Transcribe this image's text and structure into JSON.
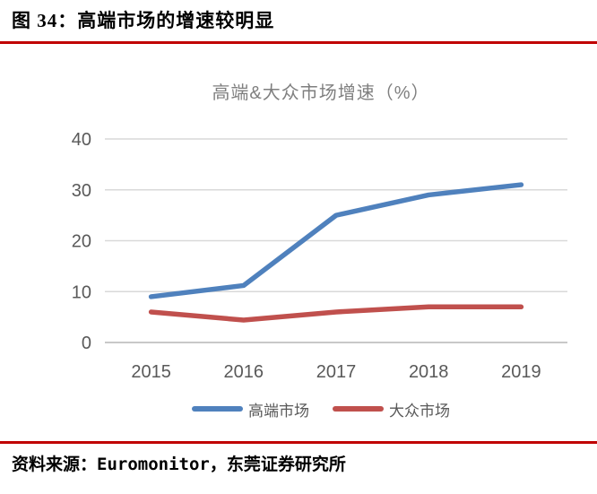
{
  "figure": {
    "title": "图 34：高端市场的增速较明显",
    "source": "资料来源：Euromonitor，东莞证券研究所"
  },
  "colors": {
    "rule_red": "#c00000",
    "gridline": "#d9d9d9",
    "baseline": "#c8c8c8",
    "axis_text": "#595959",
    "chart_title_text": "#7f7f7f"
  },
  "chart_data": {
    "type": "line",
    "title": "高端&大众市场增速（%）",
    "categories": [
      "2015",
      "2016",
      "2017",
      "2018",
      "2019"
    ],
    "series": [
      {
        "name": "高端市场",
        "color": "#4f81bd",
        "values": [
          9,
          11.2,
          25,
          29,
          31
        ]
      },
      {
        "name": "大众市场",
        "color": "#c0504d",
        "values": [
          6,
          4.4,
          6,
          7,
          7
        ]
      }
    ],
    "ylim": [
      0,
      40
    ],
    "yticks": [
      0,
      10,
      20,
      30,
      40
    ],
    "grid": true,
    "legend_position": "bottom"
  }
}
